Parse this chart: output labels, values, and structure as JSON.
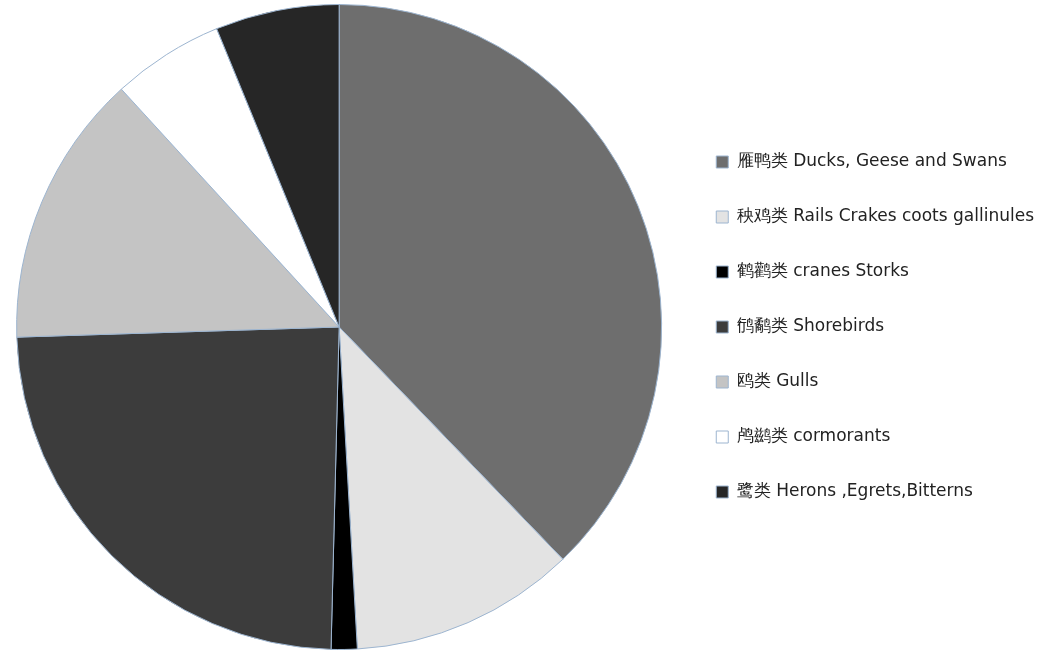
{
  "chart_data": {
    "type": "pie",
    "categories": [
      "雁鸭类 Ducks, Geese and Swans",
      "秧鸡类 Rails Crakes coots gallinules",
      "鹤鹳类 cranes Storks",
      "鸻鹬类 Shorebirds",
      "鸥类 Gulls",
      "鸬鹚类 cormorants",
      "鹭类 Herons ,Egrets,Bitterns"
    ],
    "values": [
      37.8,
      11.3,
      1.3,
      24.1,
      13.7,
      5.6,
      6.2
    ],
    "colors": [
      "#6e6e6e",
      "#e3e3e3",
      "#000000",
      "#3c3c3c",
      "#c4c4c4",
      "#ffffff",
      "#262626"
    ],
    "legend": "right"
  }
}
